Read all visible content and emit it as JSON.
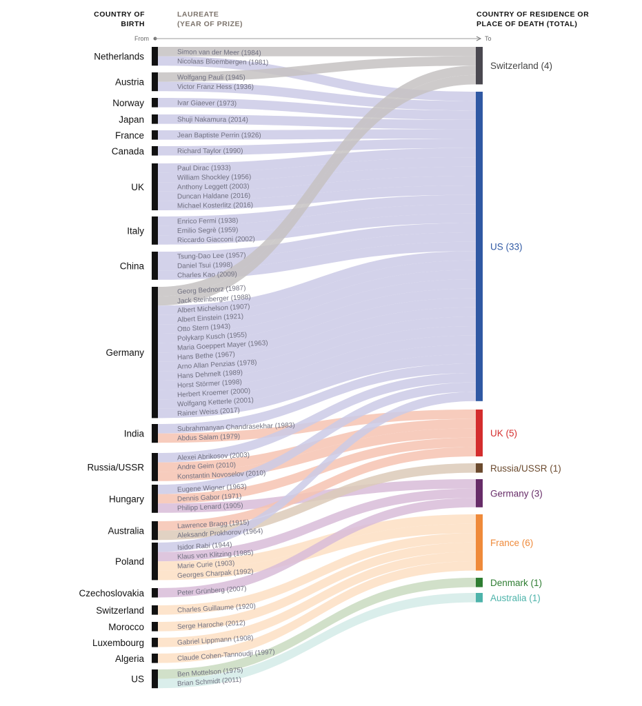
{
  "headers": {
    "birth": "COUNTRY OF BIRTH",
    "laureate": "LAUREATE (YEAR OF PRIZE)",
    "destination": "COUNTRY OF RESIDENCE OR PLACE OF DEATH (TOTAL)"
  },
  "axis": {
    "from": "From",
    "to": "To"
  },
  "chart_data": {
    "type": "sankey",
    "destinations": [
      {
        "id": "Switzerland",
        "label": "Switzerland (4)",
        "total": 4,
        "color": "#4a4850",
        "band": "#c6c2c2",
        "text": "#444444"
      },
      {
        "id": "US",
        "label": "US (33)",
        "total": 33,
        "color": "#2f58a3",
        "band": "#cbcae6",
        "text": "#2f58a3"
      },
      {
        "id": "UK",
        "label": "UK (5)",
        "total": 5,
        "color": "#d42d2d",
        "band": "#f6c3b1",
        "text": "#d42d2d"
      },
      {
        "id": "Russia/USSR",
        "label": "Russia/USSR (1)",
        "total": 1,
        "color": "#6b4a2e",
        "band": "#dccab9",
        "text": "#6b4a2e"
      },
      {
        "id": "Germany",
        "label": "Germany (3)",
        "total": 3,
        "color": "#672c68",
        "band": "#d8bcd8",
        "text": "#672c68"
      },
      {
        "id": "France",
        "label": "France (6)",
        "total": 6,
        "color": "#ef8a3a",
        "band": "#fddfc3",
        "text": "#ef8a3a"
      },
      {
        "id": "Denmark",
        "label": "Denmark (1)",
        "total": 1,
        "color": "#2e7d32",
        "band": "#c9dbc0",
        "text": "#2e7d32"
      },
      {
        "id": "Australia",
        "label": "Australia (1)",
        "total": 1,
        "color": "#4db3aa",
        "band": "#d3ebe7",
        "text": "#4db3aa"
      }
    ],
    "countries": [
      {
        "name": "Netherlands",
        "laureates": [
          {
            "name": "Simon van der Meer (1984)",
            "to": "Switzerland"
          },
          {
            "name": "Nicolaas Bloembergen (1981)",
            "to": "US"
          }
        ]
      },
      {
        "name": "Austria",
        "laureates": [
          {
            "name": "Wolfgang Pauli (1945)",
            "to": "Switzerland"
          },
          {
            "name": "Victor Franz Hess (1936)",
            "to": "US"
          }
        ]
      },
      {
        "name": "Norway",
        "laureates": [
          {
            "name": "Ivar Giaever (1973)",
            "to": "US"
          }
        ]
      },
      {
        "name": "Japan",
        "laureates": [
          {
            "name": "Shuji Nakamura (2014)",
            "to": "US"
          }
        ]
      },
      {
        "name": "France",
        "laureates": [
          {
            "name": "Jean Baptiste Perrin (1926)",
            "to": "US"
          }
        ]
      },
      {
        "name": "Canada",
        "laureates": [
          {
            "name": "Richard Taylor (1990)",
            "to": "US"
          }
        ]
      },
      {
        "name": "UK",
        "laureates": [
          {
            "name": "Paul Dirac (1933)",
            "to": "US"
          },
          {
            "name": "William Shockley (1956)",
            "to": "US"
          },
          {
            "name": "Anthony Leggett (2003)",
            "to": "US"
          },
          {
            "name": "Duncan Haldane (2016)",
            "to": "US"
          },
          {
            "name": "Michael Kosterlitz (2016)",
            "to": "US"
          }
        ]
      },
      {
        "name": "Italy",
        "laureates": [
          {
            "name": "Enrico Fermi (1938)",
            "to": "US"
          },
          {
            "name": "Emilio Segrè (1959)",
            "to": "US"
          },
          {
            "name": "Riccardo Giacconi (2002)",
            "to": "US"
          }
        ]
      },
      {
        "name": "China",
        "laureates": [
          {
            "name": "Tsung-Dao Lee (1957)",
            "to": "US"
          },
          {
            "name": "Daniel Tsui (1998)",
            "to": "US"
          },
          {
            "name": "Charles Kao (2009)",
            "to": "US"
          }
        ]
      },
      {
        "name": "Germany",
        "laureates": [
          {
            "name": "Georg Bednorz (1987)",
            "to": "Switzerland"
          },
          {
            "name": "Jack Steinberger (1988)",
            "to": "Switzerland"
          },
          {
            "name": "Albert Michelson (1907)",
            "to": "US"
          },
          {
            "name": "Albert Einstein (1921)",
            "to": "US"
          },
          {
            "name": "Otto Stern (1943)",
            "to": "US"
          },
          {
            "name": "Polykarp Kusch (1955)",
            "to": "US"
          },
          {
            "name": "Maria Goeppert Mayer (1963)",
            "to": "US"
          },
          {
            "name": "Hans Bethe (1967)",
            "to": "US"
          },
          {
            "name": "Arno Allan Penzias (1978)",
            "to": "US"
          },
          {
            "name": "Hans Dehmelt (1989)",
            "to": "US"
          },
          {
            "name": "Horst Störmer (1998)",
            "to": "US"
          },
          {
            "name": "Herbert Kroemer (2000)",
            "to": "US"
          },
          {
            "name": "Wolfgang Ketterle (2001)",
            "to": "US"
          },
          {
            "name": "Rainer Weiss (2017)",
            "to": "US"
          }
        ]
      },
      {
        "name": "India",
        "laureates": [
          {
            "name": "Subrahmanyan Chandrasekhar (1983)",
            "to": "US"
          },
          {
            "name": "Abdus Salam (1979)",
            "to": "UK"
          }
        ]
      },
      {
        "name": "Russia/USSR",
        "laureates": [
          {
            "name": "Alexei Abrikosov (2003)",
            "to": "US"
          },
          {
            "name": "Andre Geim (2010)",
            "to": "UK"
          },
          {
            "name": "Konstantin Novoselov (2010)",
            "to": "UK"
          }
        ]
      },
      {
        "name": "Hungary",
        "laureates": [
          {
            "name": "Eugene Wigner (1963)",
            "to": "US"
          },
          {
            "name": "Dennis Gabor (1971)",
            "to": "UK"
          },
          {
            "name": "Philipp Lenard (1905)",
            "to": "Germany"
          }
        ]
      },
      {
        "name": "Australia",
        "laureates": [
          {
            "name": "Lawrence Bragg (1915)",
            "to": "UK"
          },
          {
            "name": "Aleksandr Prokhorov (1964)",
            "to": "Russia/USSR"
          }
        ]
      },
      {
        "name": "Poland",
        "laureates": [
          {
            "name": "Isidor Rabi (1944)",
            "to": "US"
          },
          {
            "name": "Klaus von Klitzing (1985)",
            "to": "Germany"
          },
          {
            "name": "Marie Curie (1903)",
            "to": "France"
          },
          {
            "name": "Georges Charpak (1992)",
            "to": "France"
          }
        ]
      },
      {
        "name": "Czechoslovakia",
        "laureates": [
          {
            "name": "Peter Grünberg (2007)",
            "to": "Germany"
          }
        ]
      },
      {
        "name": "Switzerland",
        "laureates": [
          {
            "name": "Charles Guillaume (1920)",
            "to": "France"
          }
        ]
      },
      {
        "name": "Morocco",
        "laureates": [
          {
            "name": "Serge Haroche (2012)",
            "to": "France"
          }
        ]
      },
      {
        "name": "Luxembourg",
        "laureates": [
          {
            "name": "Gabriel Lippmann (1908)",
            "to": "France"
          }
        ]
      },
      {
        "name": "Algeria",
        "laureates": [
          {
            "name": "Claude Cohen-Tannoudji (1997)",
            "to": "France"
          }
        ]
      },
      {
        "name": "US",
        "laureates": [
          {
            "name": "Ben Mottelson (1975)",
            "to": "Denmark"
          },
          {
            "name": "Brian Schmidt (2011)",
            "to": "Australia"
          }
        ]
      }
    ]
  }
}
